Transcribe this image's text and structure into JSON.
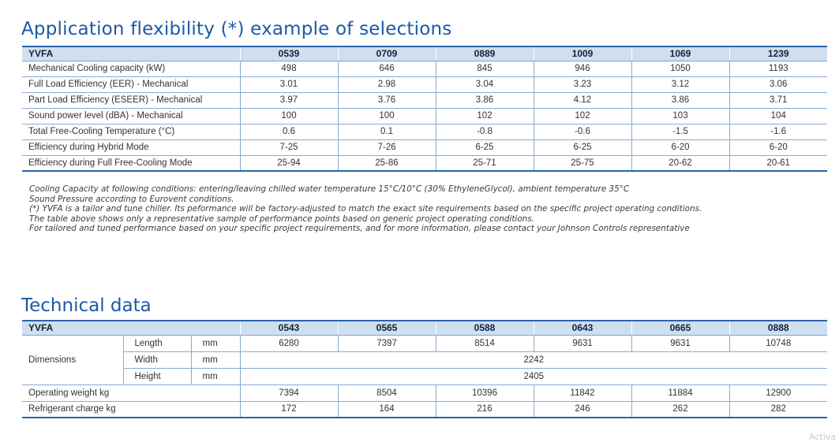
{
  "section1": {
    "title": "Application flexibility (*) example of selections",
    "header": [
      "YVFA",
      "0539",
      "0709",
      "0889",
      "1009",
      "1069",
      "1239"
    ],
    "rows": [
      {
        "label": "Mechanical Cooling capacity (kW)",
        "values": [
          "498",
          "646",
          "845",
          "946",
          "1050",
          "1193"
        ]
      },
      {
        "label": "Full Load Efficiency (EER) - Mechanical",
        "values": [
          "3.01",
          "2.98",
          "3.04",
          "3.23",
          "3.12",
          "3.06"
        ]
      },
      {
        "label": "Part Load Efficiency (ESEER) - Mechanical",
        "values": [
          "3.97",
          "3.76",
          "3.86",
          "4.12",
          "3.86",
          "3.71"
        ]
      },
      {
        "label": "Sound power level (dBA) - Mechanical",
        "values": [
          "100",
          "100",
          "102",
          "102",
          "103",
          "104"
        ]
      },
      {
        "label": "Total Free-Cooling Temperature (°C)",
        "values": [
          "0.6",
          "0.1",
          "-0.8",
          "-0.6",
          "-1.5",
          "-1.6"
        ]
      },
      {
        "label": "Efficiency during Hybrid Mode",
        "values": [
          "7-25",
          "7-26",
          "6-25",
          "6-25",
          "6-20",
          "6-20"
        ]
      },
      {
        "label": "Efficiency during Full Free-Cooling Mode",
        "values": [
          "25-94",
          "25-86",
          "25-71",
          "25-75",
          "20-62",
          "20-61"
        ]
      }
    ],
    "notes": [
      "Cooling Capacity at following conditions: entering/leaving chilled water temperature 15°C/10°C (30% EthyleneGlycol), ambient temperature 35°C",
      "Sound Pressure according to Eurovent conditions.",
      "(*) YVFA is a tailor and tune chiller. Its peformance will be factory-adjusted to match the exact site requirements based on the specific project operating conditions.",
      "The table above shows only a representative sample of performance points based on generic project operating conditions.",
      "For tailored and tuned performance based on your specific project requirements, and for more information, please contact your Johnson Controls representative"
    ]
  },
  "section2": {
    "title": "Technical data",
    "header": [
      "YVFA",
      "0543",
      "0565",
      "0588",
      "0643",
      "0665",
      "0888"
    ],
    "dimensions": {
      "label": "Dimensions",
      "length": {
        "label": "Length",
        "unit": "mm",
        "values": [
          "6280",
          "7397",
          "8514",
          "9631",
          "9631",
          "10748"
        ]
      },
      "width": {
        "label": "Width",
        "unit": "mm",
        "value": "2242"
      },
      "height": {
        "label": "Height",
        "unit": "mm",
        "value": "2405"
      }
    },
    "weight": {
      "label": "Operating weight kg",
      "values": [
        "7394",
        "8504",
        "10396",
        "11842",
        "11884",
        "12900"
      ]
    },
    "refrigerant": {
      "label": "Refrigerant charge kg",
      "values": [
        "172",
        "164",
        "216",
        "246",
        "262",
        "282"
      ]
    }
  },
  "watermark": "Activa"
}
